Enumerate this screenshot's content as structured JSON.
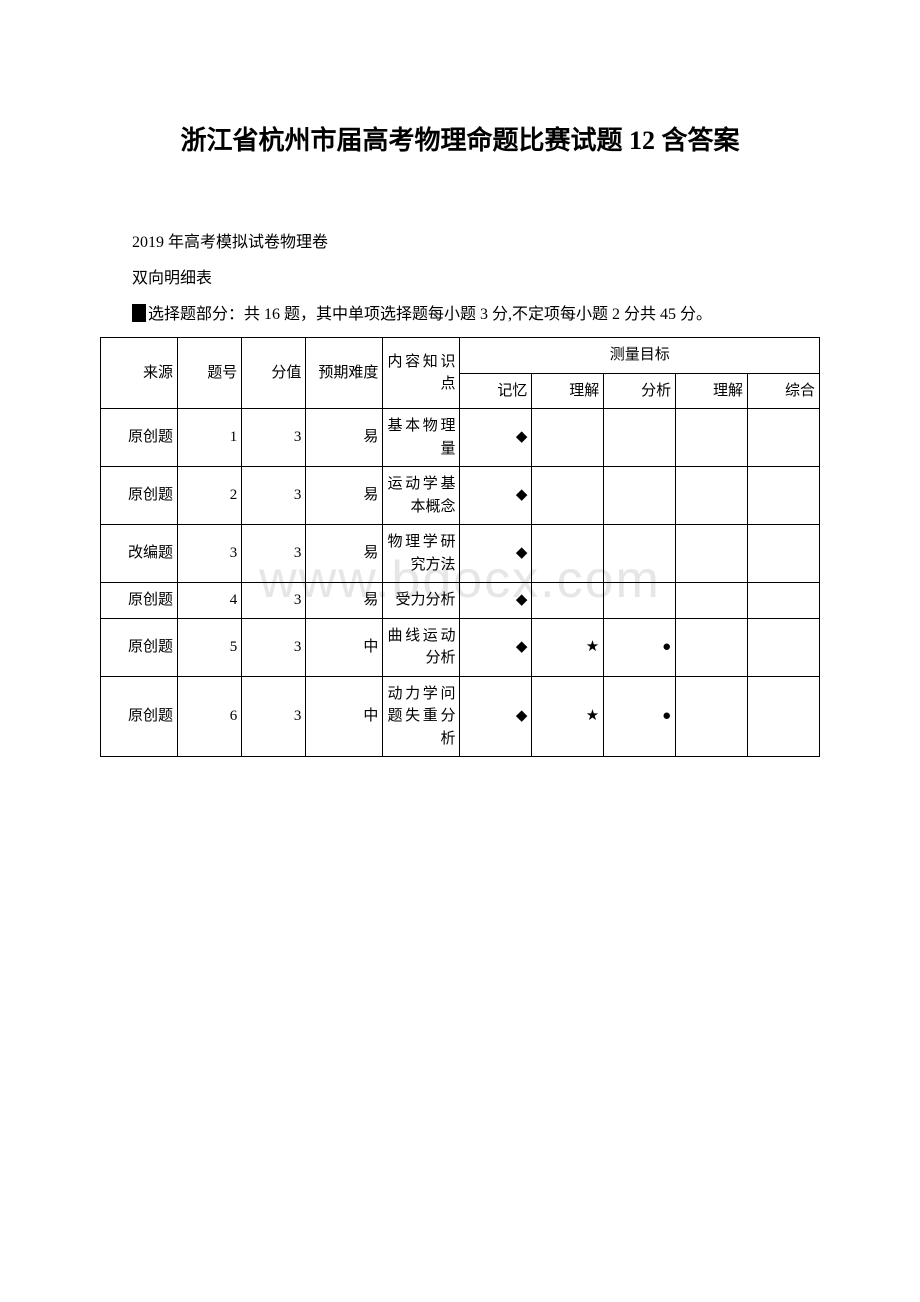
{
  "title": "浙江省杭州市届高考物理命题比赛试题 12 含答案",
  "line1": "2019 年高考模拟试卷物理卷",
  "line2": "双向明细表",
  "instruction_prefix": "选择题部分：共 16 题，其中单项选择题每小题 3 分,不定项每小题 2 分共 45 分。",
  "watermark": "www.bdocx.com",
  "columns": {
    "source": "来源",
    "num": "题号",
    "score": "分值",
    "difficulty": "预期难度",
    "topic": "内容知识点",
    "target_header": "测量目标",
    "metrics": [
      "记忆",
      "理解",
      "分析",
      "理解",
      "综合"
    ]
  },
  "marks": {
    "diamond": "◆",
    "star": "★",
    "dot": "●"
  },
  "rows": [
    {
      "source": "原创题",
      "num": "1",
      "score": "3",
      "difficulty": "易",
      "topic": "基本物理量",
      "m": [
        "◆",
        "",
        "",
        "",
        ""
      ]
    },
    {
      "source": "原创题",
      "num": "2",
      "score": "3",
      "difficulty": "易",
      "topic": "运动学基本概念",
      "m": [
        "◆",
        "",
        "",
        "",
        ""
      ]
    },
    {
      "source": "改编题",
      "num": "3",
      "score": "3",
      "difficulty": "易",
      "topic": "物理学研究方法",
      "m": [
        "◆",
        "",
        "",
        "",
        ""
      ]
    },
    {
      "source": "原创题",
      "num": "4",
      "score": "3",
      "difficulty": "易",
      "topic": "受力分析",
      "m": [
        "◆",
        "",
        "",
        "",
        ""
      ]
    },
    {
      "source": "原创题",
      "num": "5",
      "score": "3",
      "difficulty": "中",
      "topic": "曲线运动分析",
      "m": [
        "◆",
        "★",
        "●",
        "",
        ""
      ]
    },
    {
      "source": "原创题",
      "num": "6",
      "score": "3",
      "difficulty": "中",
      "topic": "动力学问题失重分析",
      "m": [
        "◆",
        "★",
        "●",
        "",
        ""
      ]
    }
  ]
}
